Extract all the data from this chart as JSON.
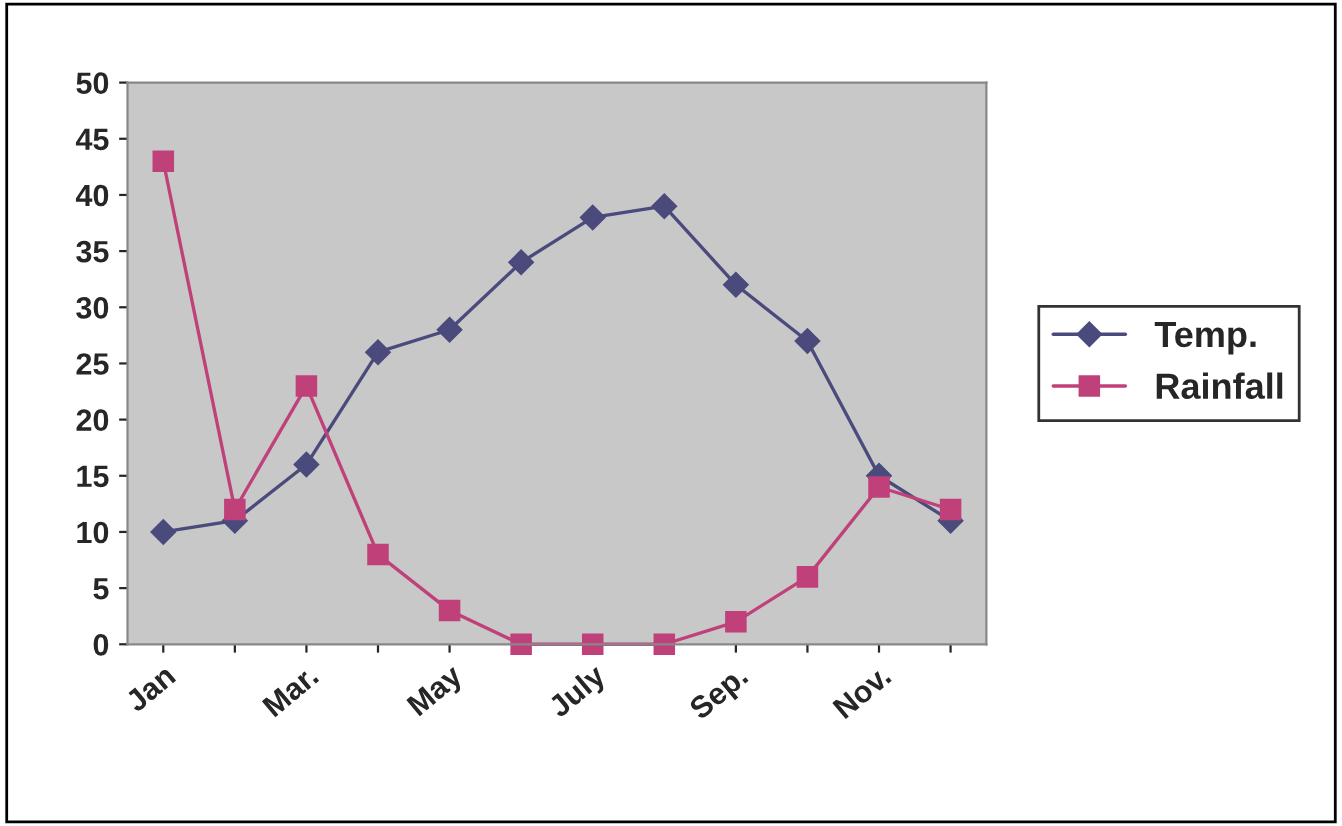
{
  "chart_data": {
    "type": "line",
    "categories": [
      "Jan",
      null,
      "Mar.",
      null,
      "May",
      null,
      "July",
      null,
      "Sep.",
      null,
      "Nov.",
      null
    ],
    "series": [
      {
        "name": "Temp.",
        "color": "#4a4a7c",
        "marker": "diamond",
        "values": [
          10,
          11,
          16,
          26,
          28,
          34,
          38,
          39,
          32,
          27,
          15,
          11
        ]
      },
      {
        "name": "Rainfall",
        "color": "#c0407a",
        "marker": "square",
        "values": [
          43,
          12,
          23,
          8,
          3,
          0,
          0,
          0,
          2,
          6,
          14,
          12
        ]
      }
    ],
    "ylim": [
      0,
      50
    ],
    "yticks": [
      0,
      5,
      10,
      15,
      20,
      25,
      30,
      35,
      40,
      45,
      50
    ],
    "legend": "right",
    "line_style": "solid"
  }
}
